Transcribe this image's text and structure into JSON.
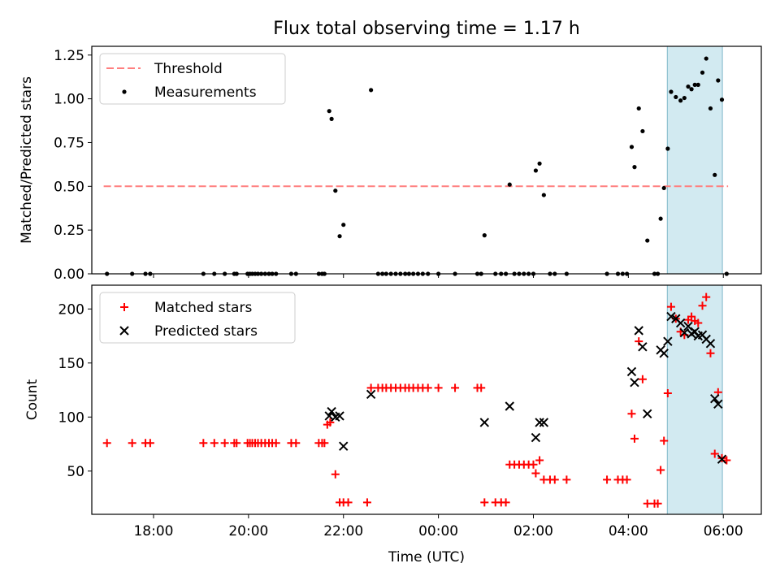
{
  "title": "Flux total observing time = 1.17 h",
  "shade_color": "#add8e6",
  "chart_data": [
    {
      "type": "scatter",
      "ylabel": "Matched/Predicted stars",
      "xlabel": "",
      "xlim": [
        16.7,
        30.8
      ],
      "ylim": [
        0,
        1.3
      ],
      "x_ticks": [
        {
          "x": 18,
          "label": "18:00"
        },
        {
          "x": 20,
          "label": "20:00"
        },
        {
          "x": 22,
          "label": "22:00"
        },
        {
          "x": 24,
          "label": "00:00"
        },
        {
          "x": 26,
          "label": "02:00"
        },
        {
          "x": 28,
          "label": "04:00"
        },
        {
          "x": 30,
          "label": "06:00"
        }
      ],
      "x_tick_labels_visible": false,
      "y_ticks": [
        {
          "y": 0.0,
          "label": "0.00"
        },
        {
          "y": 0.25,
          "label": "0.25"
        },
        {
          "y": 0.5,
          "label": "0.50"
        },
        {
          "y": 0.75,
          "label": "0.75"
        },
        {
          "y": 1.0,
          "label": "1.00"
        },
        {
          "y": 1.25,
          "label": "1.25"
        }
      ],
      "shaded_region": [
        28.82,
        29.98
      ],
      "legend": {
        "position": "top-left",
        "entries": [
          "Threshold",
          "Measurements"
        ]
      },
      "series": [
        {
          "name": "Threshold",
          "kind": "line",
          "style": "dashed",
          "color": "#ff7f7f",
          "x": [
            16.95,
            30.1
          ],
          "y": [
            0.5,
            0.5
          ]
        },
        {
          "name": "Measurements",
          "kind": "dot",
          "color": "#000000",
          "points": [
            [
              17.02,
              0
            ],
            [
              17.55,
              0
            ],
            [
              17.83,
              0
            ],
            [
              17.93,
              0
            ],
            [
              19.05,
              0
            ],
            [
              19.28,
              0
            ],
            [
              19.5,
              0
            ],
            [
              19.7,
              0
            ],
            [
              19.75,
              0
            ],
            [
              19.98,
              0
            ],
            [
              20.03,
              0
            ],
            [
              20.08,
              0
            ],
            [
              20.14,
              0
            ],
            [
              20.2,
              0
            ],
            [
              20.27,
              0
            ],
            [
              20.35,
              0
            ],
            [
              20.43,
              0
            ],
            [
              20.5,
              0
            ],
            [
              20.58,
              0
            ],
            [
              20.9,
              0
            ],
            [
              21.0,
              0
            ],
            [
              21.48,
              0
            ],
            [
              21.55,
              0
            ],
            [
              21.6,
              0
            ],
            [
              21.7,
              0.93
            ],
            [
              21.75,
              0.885
            ],
            [
              21.83,
              0.475
            ],
            [
              21.92,
              0.215
            ],
            [
              22.0,
              0.28
            ],
            [
              22.58,
              1.05
            ],
            [
              22.73,
              0
            ],
            [
              22.82,
              0
            ],
            [
              22.9,
              0
            ],
            [
              23.0,
              0
            ],
            [
              23.1,
              0
            ],
            [
              23.2,
              0
            ],
            [
              23.3,
              0
            ],
            [
              23.38,
              0
            ],
            [
              23.47,
              0
            ],
            [
              23.57,
              0
            ],
            [
              23.67,
              0
            ],
            [
              23.78,
              0
            ],
            [
              24.0,
              0
            ],
            [
              24.35,
              0
            ],
            [
              24.82,
              0
            ],
            [
              24.9,
              0
            ],
            [
              24.97,
              0.22
            ],
            [
              25.2,
              0
            ],
            [
              25.32,
              0
            ],
            [
              25.42,
              0
            ],
            [
              25.5,
              0.51
            ],
            [
              25.6,
              0
            ],
            [
              25.7,
              0
            ],
            [
              25.8,
              0
            ],
            [
              25.9,
              0
            ],
            [
              26.0,
              0
            ],
            [
              26.05,
              0.59
            ],
            [
              26.13,
              0.63
            ],
            [
              26.22,
              0.45
            ],
            [
              26.35,
              0
            ],
            [
              26.45,
              0
            ],
            [
              26.7,
              0
            ],
            [
              27.55,
              0
            ],
            [
              27.78,
              0
            ],
            [
              27.88,
              0
            ],
            [
              27.97,
              0
            ],
            [
              28.07,
              0.725
            ],
            [
              28.13,
              0.61
            ],
            [
              28.22,
              0.945
            ],
            [
              28.3,
              0.815
            ],
            [
              28.4,
              0.19
            ],
            [
              28.55,
              0
            ],
            [
              28.62,
              0
            ],
            [
              28.68,
              0.315
            ],
            [
              28.75,
              0.49
            ],
            [
              28.83,
              0.715
            ],
            [
              28.9,
              1.04
            ],
            [
              29.0,
              1.01
            ],
            [
              29.1,
              0.99
            ],
            [
              29.18,
              1.005
            ],
            [
              29.26,
              1.07
            ],
            [
              29.33,
              1.055
            ],
            [
              29.4,
              1.08
            ],
            [
              29.47,
              1.08
            ],
            [
              29.56,
              1.15
            ],
            [
              29.64,
              1.23
            ],
            [
              29.73,
              0.945
            ],
            [
              29.82,
              0.565
            ],
            [
              29.89,
              1.105
            ],
            [
              29.97,
              0.995
            ],
            [
              30.07,
              0
            ]
          ]
        }
      ]
    },
    {
      "type": "scatter",
      "ylabel": "Count",
      "xlabel": "Time (UTC)",
      "xlim": [
        16.7,
        30.8
      ],
      "ylim": [
        10,
        222
      ],
      "x_ticks": [
        {
          "x": 18,
          "label": "18:00"
        },
        {
          "x": 20,
          "label": "20:00"
        },
        {
          "x": 22,
          "label": "22:00"
        },
        {
          "x": 24,
          "label": "00:00"
        },
        {
          "x": 26,
          "label": "02:00"
        },
        {
          "x": 28,
          "label": "04:00"
        },
        {
          "x": 30,
          "label": "06:00"
        }
      ],
      "x_tick_labels_visible": true,
      "y_ticks": [
        {
          "y": 50,
          "label": "50"
        },
        {
          "y": 100,
          "label": "100"
        },
        {
          "y": 150,
          "label": "150"
        },
        {
          "y": 200,
          "label": "200"
        }
      ],
      "shaded_region": [
        28.82,
        29.98
      ],
      "legend": {
        "position": "top-left",
        "entries": [
          "Matched stars",
          "Predicted stars"
        ]
      },
      "series": [
        {
          "name": "Matched stars",
          "kind": "plus",
          "color": "#ff0000",
          "points": [
            [
              17.02,
              76
            ],
            [
              17.55,
              76
            ],
            [
              17.83,
              76
            ],
            [
              17.93,
              76
            ],
            [
              19.05,
              76
            ],
            [
              19.28,
              76
            ],
            [
              19.5,
              76
            ],
            [
              19.7,
              76
            ],
            [
              19.75,
              76
            ],
            [
              19.98,
              76
            ],
            [
              20.03,
              76
            ],
            [
              20.08,
              76
            ],
            [
              20.14,
              76
            ],
            [
              20.2,
              76
            ],
            [
              20.27,
              76
            ],
            [
              20.35,
              76
            ],
            [
              20.43,
              76
            ],
            [
              20.5,
              76
            ],
            [
              20.58,
              76
            ],
            [
              20.9,
              76
            ],
            [
              21.0,
              76
            ],
            [
              21.48,
              76
            ],
            [
              21.55,
              76
            ],
            [
              21.6,
              76
            ],
            [
              21.66,
              93
            ],
            [
              21.72,
              95
            ],
            [
              21.83,
              47
            ],
            [
              21.92,
              21
            ],
            [
              22.0,
              21
            ],
            [
              22.1,
              21
            ],
            [
              22.5,
              21
            ],
            [
              22.58,
              127
            ],
            [
              22.73,
              127
            ],
            [
              22.82,
              127
            ],
            [
              22.9,
              127
            ],
            [
              23.0,
              127
            ],
            [
              23.1,
              127
            ],
            [
              23.2,
              127
            ],
            [
              23.3,
              127
            ],
            [
              23.38,
              127
            ],
            [
              23.47,
              127
            ],
            [
              23.57,
              127
            ],
            [
              23.67,
              127
            ],
            [
              23.78,
              127
            ],
            [
              24.0,
              127
            ],
            [
              24.35,
              127
            ],
            [
              24.82,
              127
            ],
            [
              24.9,
              127
            ],
            [
              24.97,
              21
            ],
            [
              25.2,
              21
            ],
            [
              25.32,
              21
            ],
            [
              25.42,
              21
            ],
            [
              25.5,
              56
            ],
            [
              25.6,
              56
            ],
            [
              25.7,
              56
            ],
            [
              25.8,
              56
            ],
            [
              25.9,
              56
            ],
            [
              26.0,
              56
            ],
            [
              26.05,
              48
            ],
            [
              26.13,
              60
            ],
            [
              26.22,
              42
            ],
            [
              26.35,
              42
            ],
            [
              26.45,
              42
            ],
            [
              26.7,
              42
            ],
            [
              27.55,
              42
            ],
            [
              27.78,
              42
            ],
            [
              27.88,
              42
            ],
            [
              27.97,
              42
            ],
            [
              28.07,
              103
            ],
            [
              28.13,
              80
            ],
            [
              28.22,
              170
            ],
            [
              28.3,
              135
            ],
            [
              28.4,
              20
            ],
            [
              28.55,
              20
            ],
            [
              28.62,
              20
            ],
            [
              28.68,
              51
            ],
            [
              28.75,
              78
            ],
            [
              28.83,
              122
            ],
            [
              28.9,
              202
            ],
            [
              29.0,
              191
            ],
            [
              29.1,
              179
            ],
            [
              29.18,
              176
            ],
            [
              29.26,
              190
            ],
            [
              29.33,
              193
            ],
            [
              29.4,
              189
            ],
            [
              29.47,
              187
            ],
            [
              29.56,
              203
            ],
            [
              29.64,
              211
            ],
            [
              29.73,
              159
            ],
            [
              29.82,
              66
            ],
            [
              29.89,
              123
            ],
            [
              29.97,
              62
            ],
            [
              30.07,
              60
            ]
          ]
        },
        {
          "name": "Predicted stars",
          "kind": "cross",
          "color": "#000000",
          "points": [
            [
              21.7,
              101
            ],
            [
              21.75,
              105
            ],
            [
              21.83,
              100
            ],
            [
              21.92,
              101
            ],
            [
              22.0,
              73
            ],
            [
              22.58,
              121
            ],
            [
              24.97,
              95
            ],
            [
              25.5,
              110
            ],
            [
              26.05,
              81
            ],
            [
              26.13,
              95
            ],
            [
              26.22,
              95
            ],
            [
              28.07,
              142
            ],
            [
              28.13,
              132
            ],
            [
              28.22,
              180
            ],
            [
              28.3,
              165
            ],
            [
              28.4,
              103
            ],
            [
              28.68,
              162
            ],
            [
              28.75,
              159
            ],
            [
              28.83,
              170
            ],
            [
              28.9,
              193
            ],
            [
              29.0,
              191
            ],
            [
              29.1,
              187
            ],
            [
              29.18,
              178
            ],
            [
              29.26,
              184
            ],
            [
              29.33,
              177
            ],
            [
              29.4,
              179
            ],
            [
              29.47,
              175
            ],
            [
              29.56,
              176
            ],
            [
              29.64,
              172
            ],
            [
              29.73,
              168
            ],
            [
              29.82,
              117
            ],
            [
              29.89,
              112
            ],
            [
              29.97,
              61
            ]
          ]
        }
      ]
    }
  ]
}
